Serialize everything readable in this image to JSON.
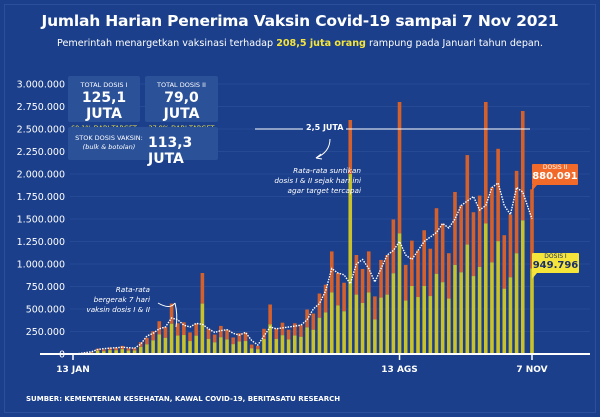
{
  "header": {
    "title": "Jumlah Harian Penerima Vaksin Covid-19 sampai 7 Nov 2021",
    "subtitle_pre": "Pemerintah menargetkan vaksinasi terhadap ",
    "subtitle_highlight": "208,5 juta orang",
    "subtitle_post": " rampung pada Januari tahun depan."
  },
  "stats": {
    "dose1": {
      "label": "TOTAL DOSIS I",
      "value": "125,1 JUTA",
      "pct": "60,1% DARI TARGET"
    },
    "dose2": {
      "label": "TOTAL DOSIS II",
      "value": "79,0 JUTA",
      "pct": "37,9% DARI TARGET"
    },
    "stock": {
      "label": "STOK DOSIS VAKSIN:",
      "sublabel": "(bulk & botolan)",
      "value": "113,3 JUTA"
    }
  },
  "annotations": {
    "target_label": "2,5 JUTA",
    "target_note": [
      "Rata-rata suntikan",
      "dosis I & II sejak hari ini",
      "agar target tercapai"
    ],
    "ma_note": [
      "Rata-rata",
      "bergerak 7 hari",
      "vaksin dosis I & II"
    ]
  },
  "callouts": {
    "dose2": {
      "label": "DOSIS II",
      "value": "880.091"
    },
    "dose1": {
      "label": "DOSIS I",
      "value": "949.796"
    }
  },
  "source": "SUMBER: KEMENTERIAN KESEHATAN, KAWAL COVID-19, BERITASATU RESEARCH",
  "colors": {
    "background": "#1b3f8b",
    "dose1": "#c9c22a",
    "dose2": "#d4612b",
    "ma": "#ffffff",
    "dose2_callout": "#f26a2a",
    "dose1_callout": "#f5e53a"
  },
  "chart_data": {
    "type": "bar",
    "stacked": true,
    "title": "Jumlah Harian Penerima Vaksin Covid-19 sampai 7 Nov 2021",
    "xlabel": "",
    "ylabel": "",
    "ylim": [
      0,
      3000000
    ],
    "yticks": [
      0,
      250000,
      500000,
      750000,
      1000000,
      1250000,
      1500000,
      1750000,
      2000000,
      2250000,
      2500000,
      2750000,
      3000000
    ],
    "ytick_labels": [
      "0",
      "250.000",
      "500.000",
      "750.000",
      "1.000.000",
      "1.250.000",
      "1.500.000",
      "1.750.000",
      "2.000.000",
      "2.250.000",
      "2.500.000",
      "2.750.000",
      "3.000.000"
    ],
    "xticks": [
      {
        "day": 0,
        "label": "13 JAN"
      },
      {
        "day": 212,
        "label": "13 AGS"
      },
      {
        "day": 298,
        "label": "7 NOV"
      }
    ],
    "x_days": [
      0,
      4,
      8,
      12,
      16,
      20,
      24,
      28,
      32,
      36,
      40,
      44,
      48,
      52,
      56,
      60,
      64,
      68,
      72,
      76,
      80,
      84,
      88,
      92,
      96,
      100,
      104,
      108,
      112,
      116,
      120,
      124,
      128,
      132,
      136,
      140,
      144,
      148,
      152,
      156,
      160,
      164,
      168,
      172,
      176,
      180,
      184,
      188,
      192,
      196,
      200,
      204,
      208,
      212,
      216,
      220,
      224,
      228,
      232,
      236,
      240,
      244,
      248,
      252,
      256,
      260,
      264,
      268,
      272,
      276,
      280,
      284,
      288,
      292,
      298
    ],
    "series": [
      {
        "name": "Dosis I",
        "values": [
          0,
          3000,
          10000,
          14000,
          36000,
          31000,
          43000,
          42000,
          54000,
          38000,
          39000,
          79000,
          108000,
          152000,
          218000,
          180000,
          336000,
          205000,
          211000,
          144000,
          204000,
          560000,
          168000,
          130000,
          187000,
          162000,
          110000,
          139000,
          144000,
          63000,
          54000,
          168000,
          330000,
          168000,
          209000,
          162000,
          205000,
          192000,
          296000,
          270000,
          403000,
          462000,
          684000,
          540000,
          475000,
          2000000,
          660000,
          567000,
          684000,
          384000,
          627000,
          660000,
          897000,
          1340000,
          594000,
          756000,
          633000,
          756000,
          644000,
          891000,
          798000,
          616000,
          990000,
          908000,
          1216000,
          866000,
          968000,
          1450000,
          1018000,
          1254000,
          726000,
          853000,
          1119000,
          1485000,
          949796
        ]
      },
      {
        "name": "Dosis II",
        "values": [
          0,
          2000,
          6000,
          9000,
          24000,
          20000,
          29000,
          28000,
          36000,
          25000,
          26000,
          53000,
          72000,
          101000,
          146000,
          120000,
          224000,
          137000,
          141000,
          96000,
          136000,
          340000,
          112000,
          86000,
          125000,
          108000,
          74000,
          92000,
          96000,
          42000,
          36000,
          112000,
          220000,
          112000,
          139000,
          108000,
          136000,
          128000,
          198000,
          180000,
          269000,
          308000,
          456000,
          360000,
          317000,
          600000,
          440000,
          378000,
          456000,
          256000,
          418000,
          440000,
          598000,
          1460000,
          396000,
          504000,
          517000,
          619000,
          526000,
          729000,
          652000,
          504000,
          810000,
          742000,
          994000,
          709000,
          792000,
          1350000,
          832000,
          1026000,
          594000,
          697000,
          916000,
          1215000,
          880091
        ]
      },
      {
        "name": "Rata-rata bergerak 7 hari",
        "type": "line",
        "values": [
          0,
          5000,
          15000,
          25000,
          50000,
          60000,
          65000,
          70000,
          75000,
          70000,
          65000,
          110000,
          200000,
          230000,
          280000,
          300000,
          400000,
          380000,
          320000,
          300000,
          340000,
          330000,
          280000,
          240000,
          260000,
          270000,
          230000,
          210000,
          240000,
          150000,
          100000,
          200000,
          300000,
          280000,
          290000,
          300000,
          310000,
          320000,
          380000,
          500000,
          560000,
          700000,
          950000,
          900000,
          880000,
          780000,
          1000000,
          1050000,
          950000,
          800000,
          950000,
          1100000,
          1150000,
          1250000,
          1100000,
          1050000,
          1150000,
          1250000,
          1300000,
          1350000,
          1450000,
          1400000,
          1500000,
          1650000,
          1700000,
          1750000,
          1600000,
          1650000,
          1850000,
          1900000,
          1650000,
          1550000,
          1850000,
          1800000,
          1500000
        ]
      }
    ],
    "reference_line": {
      "value": 2500000,
      "label": "2,5 JUTA"
    },
    "grid": true,
    "legend": "none"
  }
}
